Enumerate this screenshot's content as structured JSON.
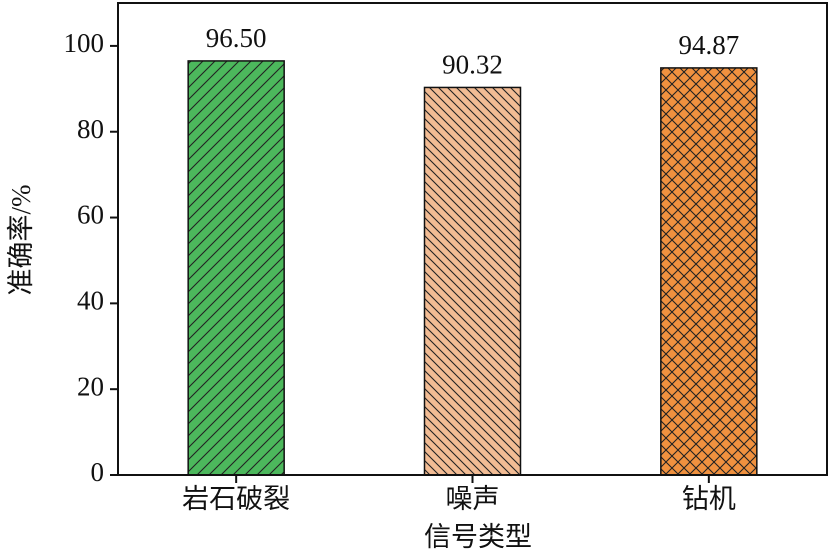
{
  "chart_data": {
    "type": "bar",
    "categories": [
      "岩石破裂",
      "噪声",
      "钻机"
    ],
    "values": [
      96.5,
      90.32,
      94.87
    ],
    "value_labels": [
      "96.50",
      "90.32",
      "94.87"
    ],
    "colors": [
      "#4cb85c",
      "#f2bc94",
      "#f0913f"
    ],
    "hatches": [
      "/",
      "\\",
      "x"
    ],
    "xlabel": "信号类型",
    "ylabel": "准确率/%",
    "ylim": [
      0,
      110
    ],
    "yticks": [
      0,
      20,
      40,
      60,
      80,
      100
    ]
  }
}
